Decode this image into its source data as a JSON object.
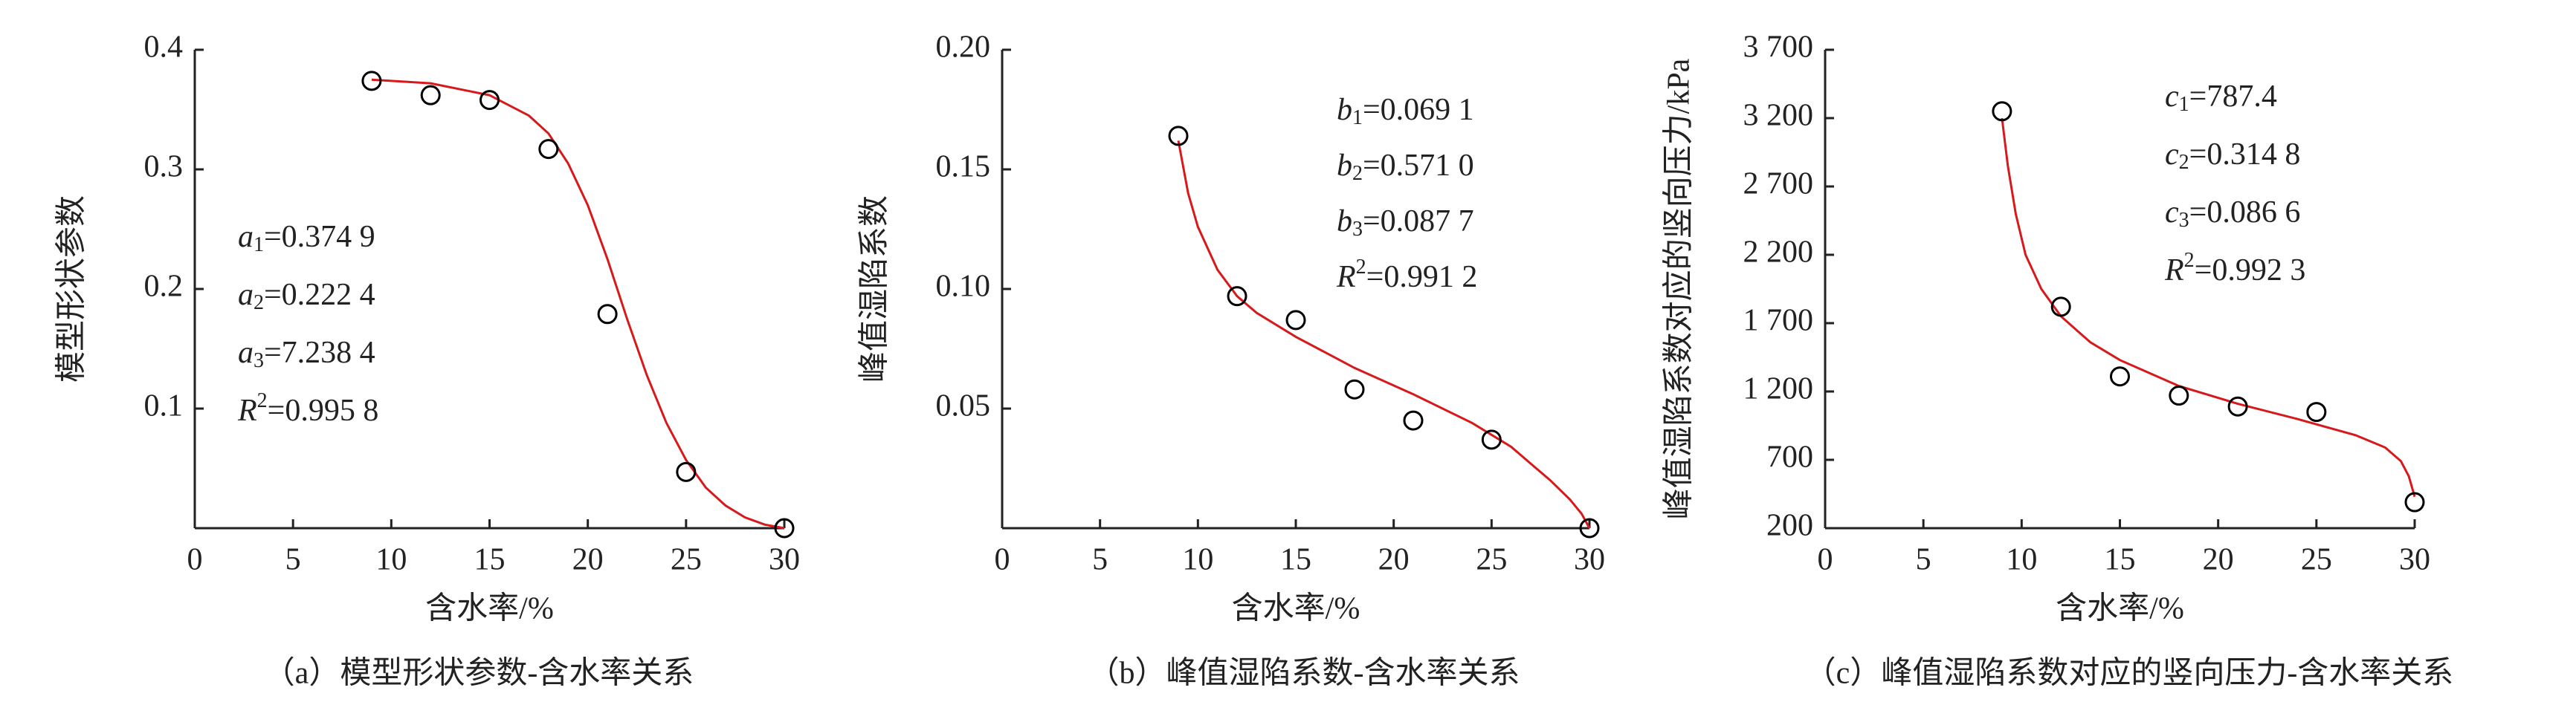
{
  "chart_data": [
    {
      "type": "scatter",
      "caption": "（a）模型形状参数-含水率关系",
      "x_label": "含水率/%",
      "y_label": "模型形状参数",
      "x": [
        9,
        12,
        15,
        18,
        21,
        25,
        30
      ],
      "values": [
        0.374,
        0.362,
        0.358,
        0.317,
        0.179,
        0.047,
        0.0
      ],
      "color": "#000000",
      "fit": {
        "color": "#d7191c",
        "x": [
          9,
          12,
          15,
          17,
          18,
          19,
          20,
          21,
          22,
          23,
          24,
          25,
          26,
          27,
          28,
          29,
          30
        ],
        "values": [
          0.375,
          0.372,
          0.362,
          0.345,
          0.33,
          0.305,
          0.27,
          0.225,
          0.175,
          0.128,
          0.088,
          0.057,
          0.034,
          0.019,
          0.009,
          0.003,
          0.0
        ]
      },
      "annotations": [
        {
          "symbol": "a",
          "sub": "1",
          "text": "=0.374 9"
        },
        {
          "symbol": "a",
          "sub": "2",
          "text": "=0.222 4"
        },
        {
          "symbol": "a",
          "sub": "3",
          "text": "=7.238 4"
        },
        {
          "symbol": "R",
          "sup": "2",
          "text": "=0.995 8"
        }
      ],
      "xlim": [
        0,
        30
      ],
      "xticks": [
        0,
        5,
        10,
        15,
        20,
        25,
        30
      ],
      "ylim": [
        0,
        0.4
      ],
      "yticks": [
        0.1,
        0.2,
        0.3,
        0.4
      ]
    },
    {
      "type": "scatter",
      "caption": "（b）峰值湿陷系数-含水率关系",
      "x_label": "含水率/%",
      "y_label": "峰值湿陷系数",
      "x": [
        9,
        12,
        15,
        18,
        21,
        25,
        30
      ],
      "values": [
        0.164,
        0.097,
        0.087,
        0.058,
        0.045,
        0.037,
        0.0
      ],
      "color": "#000000",
      "fit": {
        "color": "#d7191c",
        "x": [
          9,
          9.5,
          10,
          11,
          12,
          13,
          15,
          18,
          21,
          24,
          26,
          27,
          28,
          29,
          29.6,
          30
        ],
        "values": [
          0.162,
          0.14,
          0.126,
          0.108,
          0.097,
          0.09,
          0.08,
          0.067,
          0.056,
          0.044,
          0.034,
          0.027,
          0.02,
          0.012,
          0.006,
          0.0
        ]
      },
      "annotations": [
        {
          "symbol": "b",
          "sub": "1",
          "text": "=0.069 1"
        },
        {
          "symbol": "b",
          "sub": "2",
          "text": "=0.571 0"
        },
        {
          "symbol": "b",
          "sub": "3",
          "text": "=0.087 7"
        },
        {
          "symbol": "R",
          "sup": "2",
          "text": "=0.991 2"
        }
      ],
      "xlim": [
        0,
        30
      ],
      "xticks": [
        0,
        5,
        10,
        15,
        20,
        25,
        30
      ],
      "ylim": [
        0,
        0.2
      ],
      "yticks": [
        0.05,
        {
          "value": 0.1,
          "label": "0.10"
        },
        0.15,
        {
          "value": 0.2,
          "label": "0.20"
        }
      ]
    },
    {
      "type": "scatter",
      "caption": "（c）峰值湿陷系数对应的竖向压力-含水率关系",
      "x_label": "含水率/%",
      "y_label": "峰值湿陷系数对应的竖向压力/kPa",
      "x": [
        9,
        12,
        15,
        18,
        21,
        25,
        30
      ],
      "values": [
        3250,
        1820,
        1310,
        1170,
        1090,
        1050,
        390
      ],
      "color": "#000000",
      "fit": {
        "color": "#d7191c",
        "x": [
          9,
          9.3,
          9.7,
          10.2,
          11,
          12,
          13.5,
          15,
          18,
          21,
          24,
          27,
          28.5,
          29.3,
          29.7,
          30
        ],
        "values": [
          3200,
          2850,
          2500,
          2200,
          1950,
          1750,
          1560,
          1430,
          1240,
          1110,
          1000,
          880,
          790,
          690,
          580,
          430
        ]
      },
      "annotations": [
        {
          "symbol": "c",
          "sub": "1",
          "text": "=787.4"
        },
        {
          "symbol": "c",
          "sub": "2",
          "text": "=0.314 8"
        },
        {
          "symbol": "c",
          "sub": "3",
          "text": "=0.086 6"
        },
        {
          "symbol": "R",
          "sup": "2",
          "text": "=0.992 3"
        }
      ],
      "xlim": [
        0,
        30
      ],
      "xticks": [
        0,
        5,
        10,
        15,
        20,
        25,
        30
      ],
      "ylim": [
        200,
        3700
      ],
      "yticks": [
        200,
        700,
        {
          "value": 1200,
          "label": "1 200"
        },
        {
          "value": 1700,
          "label": "1 700"
        },
        {
          "value": 2200,
          "label": "2 200"
        },
        {
          "value": 2700,
          "label": "2 700"
        },
        {
          "value": 3200,
          "label": "3 200"
        },
        {
          "value": 3700,
          "label": "3 700"
        }
      ]
    }
  ]
}
